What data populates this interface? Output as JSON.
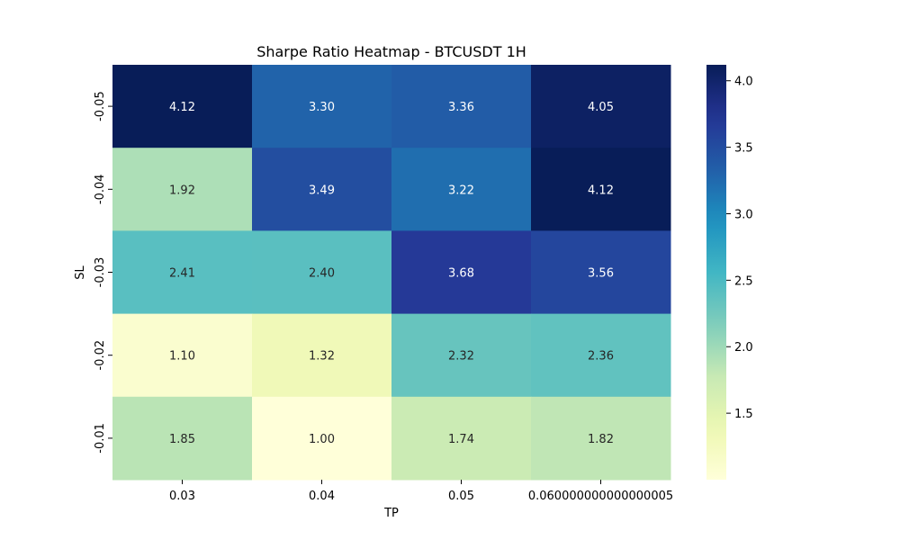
{
  "chart_data": {
    "type": "heatmap",
    "title": "Sharpe Ratio Heatmap - BTCUSDT 1H",
    "xlabel": "TP",
    "ylabel": "SL",
    "x_categories": [
      "0.03",
      "0.04",
      "0.05",
      "0.060000000000000005"
    ],
    "y_categories": [
      "-0.05",
      "-0.04",
      "-0.03",
      "-0.02",
      "-0.01"
    ],
    "values": [
      [
        4.12,
        3.3,
        3.36,
        4.05
      ],
      [
        1.92,
        3.49,
        3.22,
        4.12
      ],
      [
        2.41,
        2.4,
        3.68,
        3.56
      ],
      [
        1.1,
        1.32,
        2.32,
        2.36
      ],
      [
        1.85,
        1.0,
        1.74,
        1.82
      ]
    ],
    "value_labels": [
      [
        "4.12",
        "3.30",
        "3.36",
        "4.05"
      ],
      [
        "1.92",
        "3.49",
        "3.22",
        "4.12"
      ],
      [
        "2.41",
        "2.40",
        "3.68",
        "3.56"
      ],
      [
        "1.10",
        "1.32",
        "2.32",
        "2.36"
      ],
      [
        "1.85",
        "1.00",
        "1.74",
        "1.82"
      ]
    ],
    "colorscale": "YlGnBu",
    "color_range": [
      1.0,
      4.12
    ],
    "colorbar_ticks": [
      "1.5",
      "2.0",
      "2.5",
      "3.0",
      "3.5",
      "4.0"
    ],
    "colorbar_tick_values": [
      1.5,
      2.0,
      2.5,
      3.0,
      3.5,
      4.0
    ],
    "legend_position": "right",
    "grid": false
  }
}
